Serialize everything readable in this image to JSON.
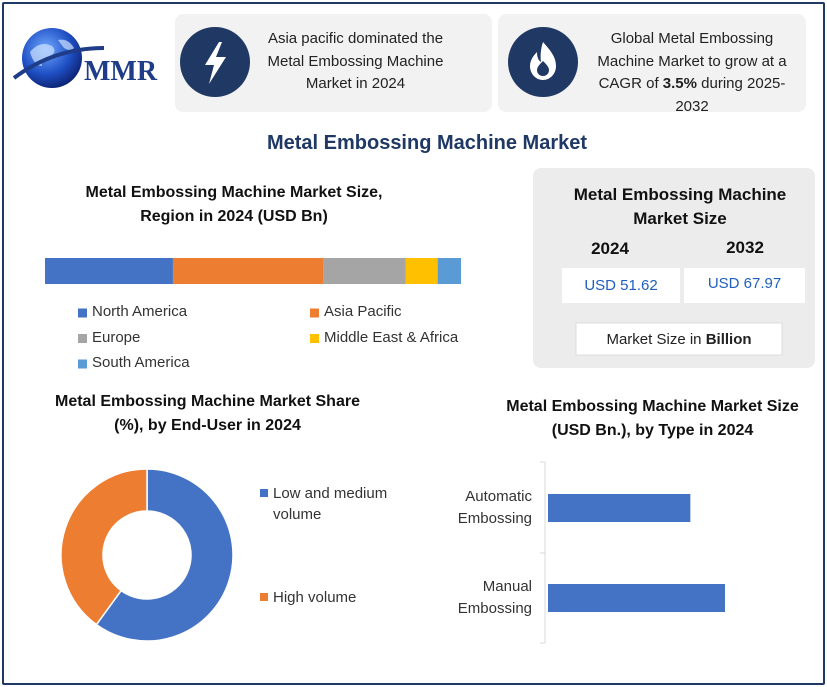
{
  "header": {
    "logo": "MMR",
    "cards": [
      {
        "text": "Asia pacific dominated the Metal Embossing Machine Market in 2024"
      },
      {
        "text_before": "Global Metal Embossing Machine Market to grow at a CAGR of ",
        "highlight": "3.5%",
        "text_after": " during 2025-2032"
      }
    ]
  },
  "title": "Metal Embossing Machine Market",
  "market_size": {
    "title": "Metal Embossing Machine Market Size",
    "years": [
      "2024",
      "2032"
    ],
    "values": [
      "USD 51.62",
      "USD 67.97"
    ],
    "note": "Market Size in",
    "note_unit": "Billion"
  },
  "chart_data": [
    {
      "type": "stacked_bar",
      "title": "Metal Embossing Machine Market Size, Region in 2024 (USD Bn)",
      "series": [
        {
          "name": "North America",
          "color": "#4472c4",
          "values": [
            15.9
          ]
        },
        {
          "name": "Asia Pacific",
          "color": "#ed7d31",
          "values": [
            18.7
          ]
        },
        {
          "name": "Europe",
          "color": "#a5a5a5",
          "values": [
            10.2
          ]
        },
        {
          "name": "Middle East & Africa",
          "color": "#ffc000",
          "values": [
            4.0
          ]
        },
        {
          "name": "South America",
          "color": "#5b9bd5",
          "values": [
            2.9
          ]
        }
      ]
    },
    {
      "type": "donut",
      "title": "Metal Embossing Machine Market Share (%), by End-User in 2024",
      "categories": [
        "Low and medium volume",
        "High volume"
      ],
      "values": [
        60,
        40
      ],
      "colors": [
        "#4472c4",
        "#ed7d31"
      ]
    },
    {
      "type": "hbar",
      "title": "Metal Embossing Machine Market Size (USD Bn.), by Type in 2024",
      "categories": [
        "Automatic Embossing",
        "Manual Embossing"
      ],
      "values": [
        23.0,
        28.6
      ],
      "color": "#4472c4"
    }
  ]
}
